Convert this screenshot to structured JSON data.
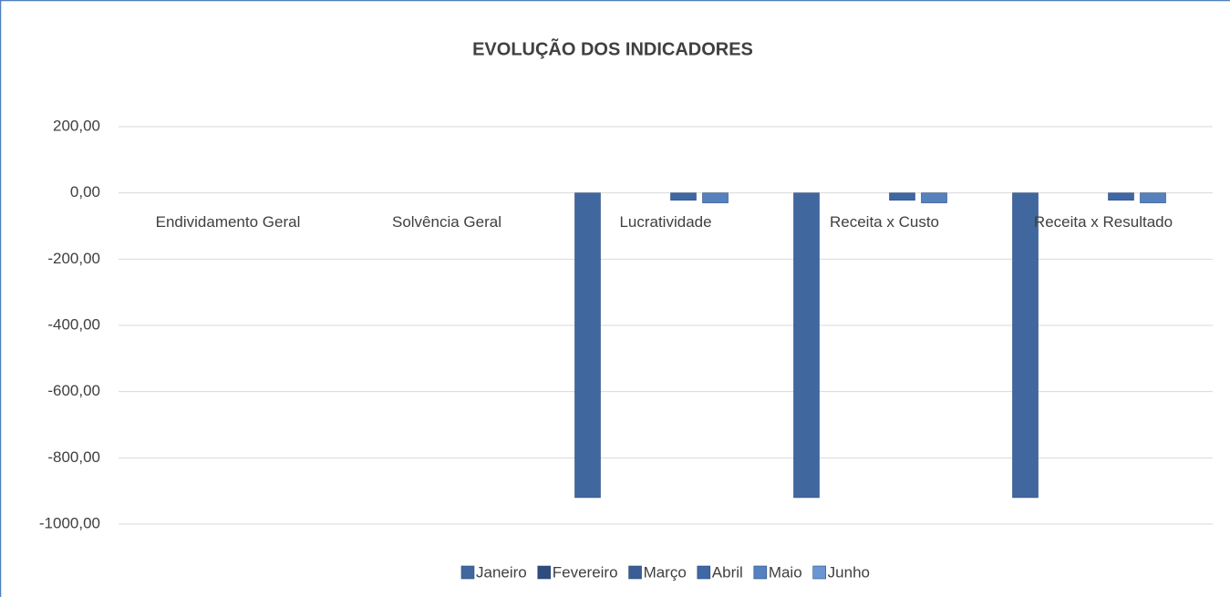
{
  "chart_data": {
    "type": "bar",
    "title": "EVOLUÇÃO DOS INDICADORES",
    "categories": [
      "Endividamento Geral",
      "Solvência Geral",
      "Lucratividade",
      "Receita x Custo",
      "Receita x Resultado"
    ],
    "series": [
      {
        "name": "Janeiro",
        "color": "#41679f",
        "values": [
          0,
          0,
          -920,
          -920,
          -920
        ]
      },
      {
        "name": "Fevereiro",
        "color": "#2e4c7c",
        "values": [
          0,
          0,
          0,
          0,
          0
        ]
      },
      {
        "name": "Março",
        "color": "#3a5e93",
        "values": [
          0,
          0,
          0,
          0,
          0
        ]
      },
      {
        "name": "Abril",
        "color": "#3f67a3",
        "values": [
          0,
          0,
          -22,
          -22,
          -22
        ]
      },
      {
        "name": "Maio",
        "color": "#5581bf",
        "values": [
          0,
          0,
          -30,
          -30,
          -30
        ]
      },
      {
        "name": "Junho",
        "color": "#6a97d3",
        "values": [
          0,
          0,
          0,
          0,
          0
        ]
      }
    ],
    "ylim": [
      -1000,
      200
    ],
    "yticks": [
      {
        "value": -1000,
        "label": "-1000,00"
      },
      {
        "value": -800,
        "label": "-800,00"
      },
      {
        "value": -600,
        "label": "-600,00"
      },
      {
        "value": -400,
        "label": "-400,00"
      },
      {
        "value": -200,
        "label": "-200,00"
      },
      {
        "value": 0,
        "label": "0,00"
      },
      {
        "value": 200,
        "label": "200,00"
      }
    ],
    "grid": true,
    "legend": "bottom"
  }
}
